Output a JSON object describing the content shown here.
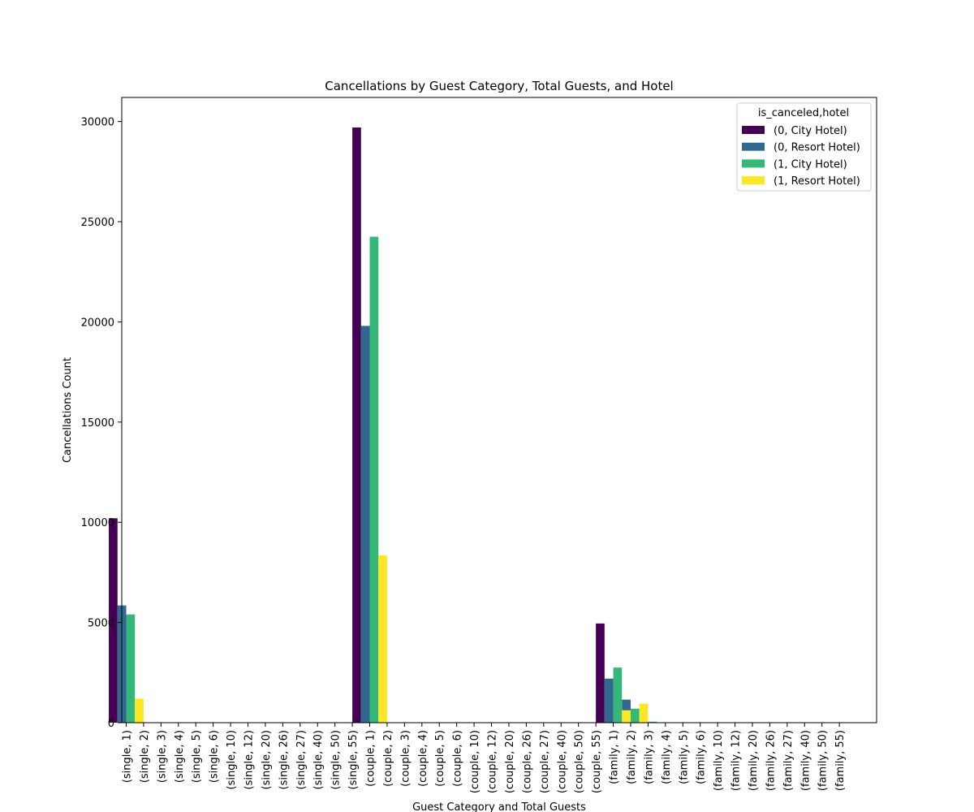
{
  "chart_data": {
    "type": "bar",
    "title": "Cancellations by Guest Category, Total Guests, and Hotel",
    "xlabel": "Guest Category and Total Guests",
    "ylabel": "Cancellations Count",
    "ylim": [
      0,
      31200
    ],
    "yticks": [
      0,
      5000,
      10000,
      15000,
      20000,
      25000,
      30000
    ],
    "grid": false,
    "legend": {
      "title": "is_canceled,hotel",
      "placement": "top-right"
    },
    "categories": [
      "(single, 1)",
      "(single, 2)",
      "(single, 3)",
      "(single, 4)",
      "(single, 5)",
      "(single, 6)",
      "(single, 10)",
      "(single, 12)",
      "(single, 20)",
      "(single, 26)",
      "(single, 27)",
      "(single, 40)",
      "(single, 50)",
      "(single, 55)",
      "(couple, 1)",
      "(couple, 2)",
      "(couple, 3)",
      "(couple, 4)",
      "(couple, 5)",
      "(couple, 6)",
      "(couple, 10)",
      "(couple, 12)",
      "(couple, 20)",
      "(couple, 26)",
      "(couple, 27)",
      "(couple, 40)",
      "(couple, 50)",
      "(couple, 55)",
      "(family, 1)",
      "(family, 2)",
      "(family, 3)",
      "(family, 4)",
      "(family, 5)",
      "(family, 6)",
      "(family, 10)",
      "(family, 12)",
      "(family, 20)",
      "(family, 26)",
      "(family, 27)",
      "(family, 40)",
      "(family, 50)",
      "(family, 55)"
    ],
    "series": [
      {
        "name": "(0, City Hotel)",
        "color": "#440154",
        "values": [
          10200,
          0,
          0,
          0,
          0,
          0,
          0,
          0,
          0,
          0,
          0,
          0,
          0,
          0,
          29700,
          0,
          0,
          0,
          0,
          0,
          0,
          0,
          0,
          0,
          0,
          0,
          0,
          0,
          4950,
          0,
          0,
          0,
          0,
          0,
          0,
          0,
          0,
          0,
          0,
          0,
          0,
          0
        ]
      },
      {
        "name": "(0, Resort Hotel)",
        "color": "#31688e",
        "values": [
          5850,
          0,
          0,
          0,
          0,
          0,
          0,
          0,
          0,
          0,
          0,
          0,
          0,
          0,
          19800,
          0,
          0,
          0,
          0,
          0,
          0,
          0,
          0,
          0,
          0,
          0,
          0,
          0,
          2200,
          1150,
          0,
          0,
          0,
          0,
          0,
          0,
          0,
          0,
          0,
          0,
          0,
          0
        ]
      },
      {
        "name": "(1, City Hotel)",
        "color": "#35b779",
        "values": [
          5400,
          0,
          0,
          0,
          0,
          0,
          0,
          0,
          0,
          0,
          0,
          0,
          0,
          0,
          24250,
          0,
          0,
          0,
          0,
          0,
          0,
          0,
          0,
          0,
          0,
          0,
          0,
          0,
          2750,
          700,
          50,
          0,
          0,
          0,
          0,
          0,
          0,
          0,
          0,
          0,
          0,
          0
        ]
      },
      {
        "name": "(1, Resort Hotel)",
        "color": "#fde725",
        "values": [
          1200,
          0,
          0,
          0,
          0,
          0,
          0,
          0,
          0,
          0,
          0,
          0,
          0,
          0,
          8350,
          0,
          0,
          0,
          0,
          0,
          0,
          0,
          0,
          0,
          0,
          0,
          0,
          0,
          620,
          950,
          0,
          0,
          0,
          0,
          0,
          0,
          0,
          0,
          0,
          0,
          0,
          0
        ]
      }
    ]
  }
}
